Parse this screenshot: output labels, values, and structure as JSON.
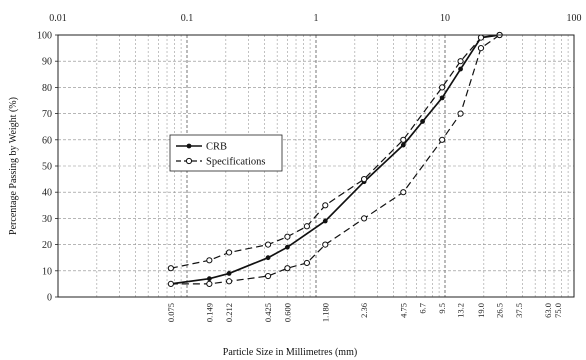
{
  "chart_data": {
    "type": "line",
    "x_scale": "log",
    "xlim": [
      0.01,
      100
    ],
    "ylim": [
      0,
      100
    ],
    "xlabel": "Particle Size in Millimetres (mm)",
    "ylabel": "Percentage Passing by Weight (%)",
    "top_ticks": [
      "0.01",
      "0.1",
      "1",
      "10",
      "100"
    ],
    "y_ticks": [
      "0",
      "10",
      "20",
      "30",
      "40",
      "50",
      "60",
      "70",
      "80",
      "90",
      "100"
    ],
    "sieve_labels": [
      "0.075",
      "0.149",
      "0.212",
      "0.425",
      "0.600",
      "1.180",
      "2.36",
      "4.75",
      "6.7",
      "9.5",
      "13.2",
      "19.0",
      "26.5",
      "37.5",
      "63.0",
      "75.0"
    ],
    "grid": true,
    "legend_position": "center-left",
    "series": [
      {
        "name": "CRB",
        "style": "solid",
        "marker": "filled-circle",
        "points": [
          {
            "x": 0.075,
            "y": 5
          },
          {
            "x": 0.149,
            "y": 7
          },
          {
            "x": 0.212,
            "y": 9
          },
          {
            "x": 0.425,
            "y": 15
          },
          {
            "x": 0.6,
            "y": 19
          },
          {
            "x": 1.18,
            "y": 29
          },
          {
            "x": 2.36,
            "y": 44
          },
          {
            "x": 4.75,
            "y": 58
          },
          {
            "x": 6.7,
            "y": 67
          },
          {
            "x": 9.5,
            "y": 76
          },
          {
            "x": 13.2,
            "y": 87
          },
          {
            "x": 19.0,
            "y": 99
          },
          {
            "x": 26.5,
            "y": 100
          }
        ]
      },
      {
        "name": "Specifications",
        "style": "dashed",
        "marker": "open-circle",
        "bounds": [
          {
            "points": [
              {
                "x": 0.075,
                "y": 11
              },
              {
                "x": 0.149,
                "y": 14
              },
              {
                "x": 0.212,
                "y": 17
              },
              {
                "x": 0.425,
                "y": 20
              },
              {
                "x": 0.6,
                "y": 23
              },
              {
                "x": 0.85,
                "y": 27
              },
              {
                "x": 1.18,
                "y": 35
              },
              {
                "x": 2.36,
                "y": 45
              },
              {
                "x": 4.75,
                "y": 60
              },
              {
                "x": 9.5,
                "y": 80
              },
              {
                "x": 13.2,
                "y": 90
              },
              {
                "x": 19.0,
                "y": 99
              },
              {
                "x": 26.5,
                "y": 100
              }
            ]
          },
          {
            "points": [
              {
                "x": 0.075,
                "y": 5
              },
              {
                "x": 0.149,
                "y": 5
              },
              {
                "x": 0.212,
                "y": 6
              },
              {
                "x": 0.425,
                "y": 8
              },
              {
                "x": 0.6,
                "y": 11
              },
              {
                "x": 0.85,
                "y": 13
              },
              {
                "x": 1.18,
                "y": 20
              },
              {
                "x": 2.36,
                "y": 30
              },
              {
                "x": 4.75,
                "y": 40
              },
              {
                "x": 9.5,
                "y": 60
              },
              {
                "x": 13.2,
                "y": 70
              },
              {
                "x": 19.0,
                "y": 95
              },
              {
                "x": 26.5,
                "y": 100
              }
            ]
          }
        ]
      }
    ]
  }
}
